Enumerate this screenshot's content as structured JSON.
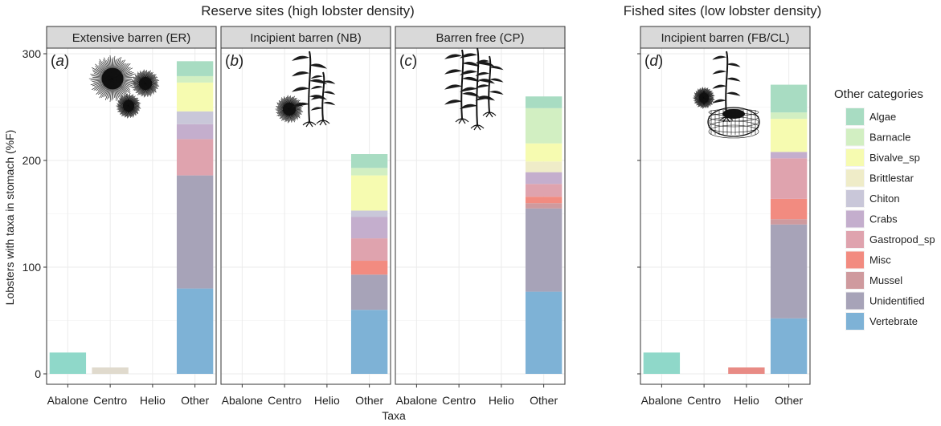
{
  "chart_data": {
    "type": "bar",
    "stacked": true,
    "xlabel": "Taxa",
    "ylabel": "Lobsters with taxa in stomach (%F)",
    "ylim": [
      0,
      300
    ],
    "yticks": [
      0,
      100,
      200,
      300
    ],
    "categories": [
      "Abalone",
      "Centro",
      "Helio",
      "Other"
    ],
    "group_titles": [
      "Reserve sites (high lobster density)",
      "Fished sites (low lobster density)"
    ],
    "legend": {
      "title": "Other categories",
      "items": [
        {
          "name": "Algae",
          "color": "#a8dcc2"
        },
        {
          "name": "Barnacle",
          "color": "#d2efc2"
        },
        {
          "name": "Bivalve_sp",
          "color": "#f6fbb0"
        },
        {
          "name": "Brittlestar",
          "color": "#efecc8"
        },
        {
          "name": "Chiton",
          "color": "#c9c7d9"
        },
        {
          "name": "Crabs",
          "color": "#c4aecd"
        },
        {
          "name": "Gastropod_sp",
          "color": "#dfa3ae"
        },
        {
          "name": "Misc",
          "color": "#f28b80"
        },
        {
          "name": "Mussel",
          "color": "#cf9a9e"
        },
        {
          "name": "Unidentified",
          "color": "#a7a3b8"
        },
        {
          "name": "Vertebrate",
          "color": "#7eb2d6"
        }
      ]
    },
    "single_colors": {
      "Abalone": "#8fd8c9",
      "Centro": "#e0dacd",
      "Helio": "#e88b85"
    },
    "panels": [
      {
        "id": "a",
        "label": "(a)",
        "title": "Extensive barren (ER)",
        "group": 0,
        "Abalone": 20,
        "Centro": 6,
        "Helio": 0,
        "Other": [
          {
            "name": "Vertebrate",
            "value": 80
          },
          {
            "name": "Unidentified",
            "value": 106
          },
          {
            "name": "Mussel",
            "value": 0
          },
          {
            "name": "Misc",
            "value": 0
          },
          {
            "name": "Gastropod_sp",
            "value": 34
          },
          {
            "name": "Crabs",
            "value": 14
          },
          {
            "name": "Chiton",
            "value": 12
          },
          {
            "name": "Brittlestar",
            "value": 0
          },
          {
            "name": "Bivalve_sp",
            "value": 27
          },
          {
            "name": "Barnacle",
            "value": 6
          },
          {
            "name": "Algae",
            "value": 14
          }
        ]
      },
      {
        "id": "b",
        "label": "(b)",
        "title": "Incipient barren (NB)",
        "group": 0,
        "Abalone": 0,
        "Centro": 0,
        "Helio": 0,
        "Other": [
          {
            "name": "Vertebrate",
            "value": 60
          },
          {
            "name": "Unidentified",
            "value": 33
          },
          {
            "name": "Mussel",
            "value": 0
          },
          {
            "name": "Misc",
            "value": 13
          },
          {
            "name": "Gastropod_sp",
            "value": 21
          },
          {
            "name": "Crabs",
            "value": 20
          },
          {
            "name": "Chiton",
            "value": 6
          },
          {
            "name": "Brittlestar",
            "value": 0
          },
          {
            "name": "Bivalve_sp",
            "value": 33
          },
          {
            "name": "Barnacle",
            "value": 7
          },
          {
            "name": "Algae",
            "value": 13
          }
        ]
      },
      {
        "id": "c",
        "label": "(c)",
        "title": "Barren free (CP)",
        "group": 0,
        "Abalone": 0,
        "Centro": 0,
        "Helio": 0,
        "Other": [
          {
            "name": "Vertebrate",
            "value": 77
          },
          {
            "name": "Unidentified",
            "value": 78
          },
          {
            "name": "Mussel",
            "value": 5
          },
          {
            "name": "Misc",
            "value": 6
          },
          {
            "name": "Gastropod_sp",
            "value": 12
          },
          {
            "name": "Crabs",
            "value": 11
          },
          {
            "name": "Chiton",
            "value": 0
          },
          {
            "name": "Brittlestar",
            "value": 10
          },
          {
            "name": "Bivalve_sp",
            "value": 17
          },
          {
            "name": "Barnacle",
            "value": 33
          },
          {
            "name": "Algae",
            "value": 11
          }
        ]
      },
      {
        "id": "d",
        "label": "(d)",
        "title": "Incipient barren (FB/CL)",
        "group": 1,
        "Abalone": 20,
        "Centro": 0,
        "Helio": 6,
        "Other": [
          {
            "name": "Vertebrate",
            "value": 52
          },
          {
            "name": "Unidentified",
            "value": 88
          },
          {
            "name": "Mussel",
            "value": 5
          },
          {
            "name": "Misc",
            "value": 19
          },
          {
            "name": "Gastropod_sp",
            "value": 38
          },
          {
            "name": "Crabs",
            "value": 6
          },
          {
            "name": "Chiton",
            "value": 0
          },
          {
            "name": "Brittlestar",
            "value": 0
          },
          {
            "name": "Bivalve_sp",
            "value": 31
          },
          {
            "name": "Barnacle",
            "value": 6
          },
          {
            "name": "Algae",
            "value": 26
          }
        ]
      }
    ]
  }
}
